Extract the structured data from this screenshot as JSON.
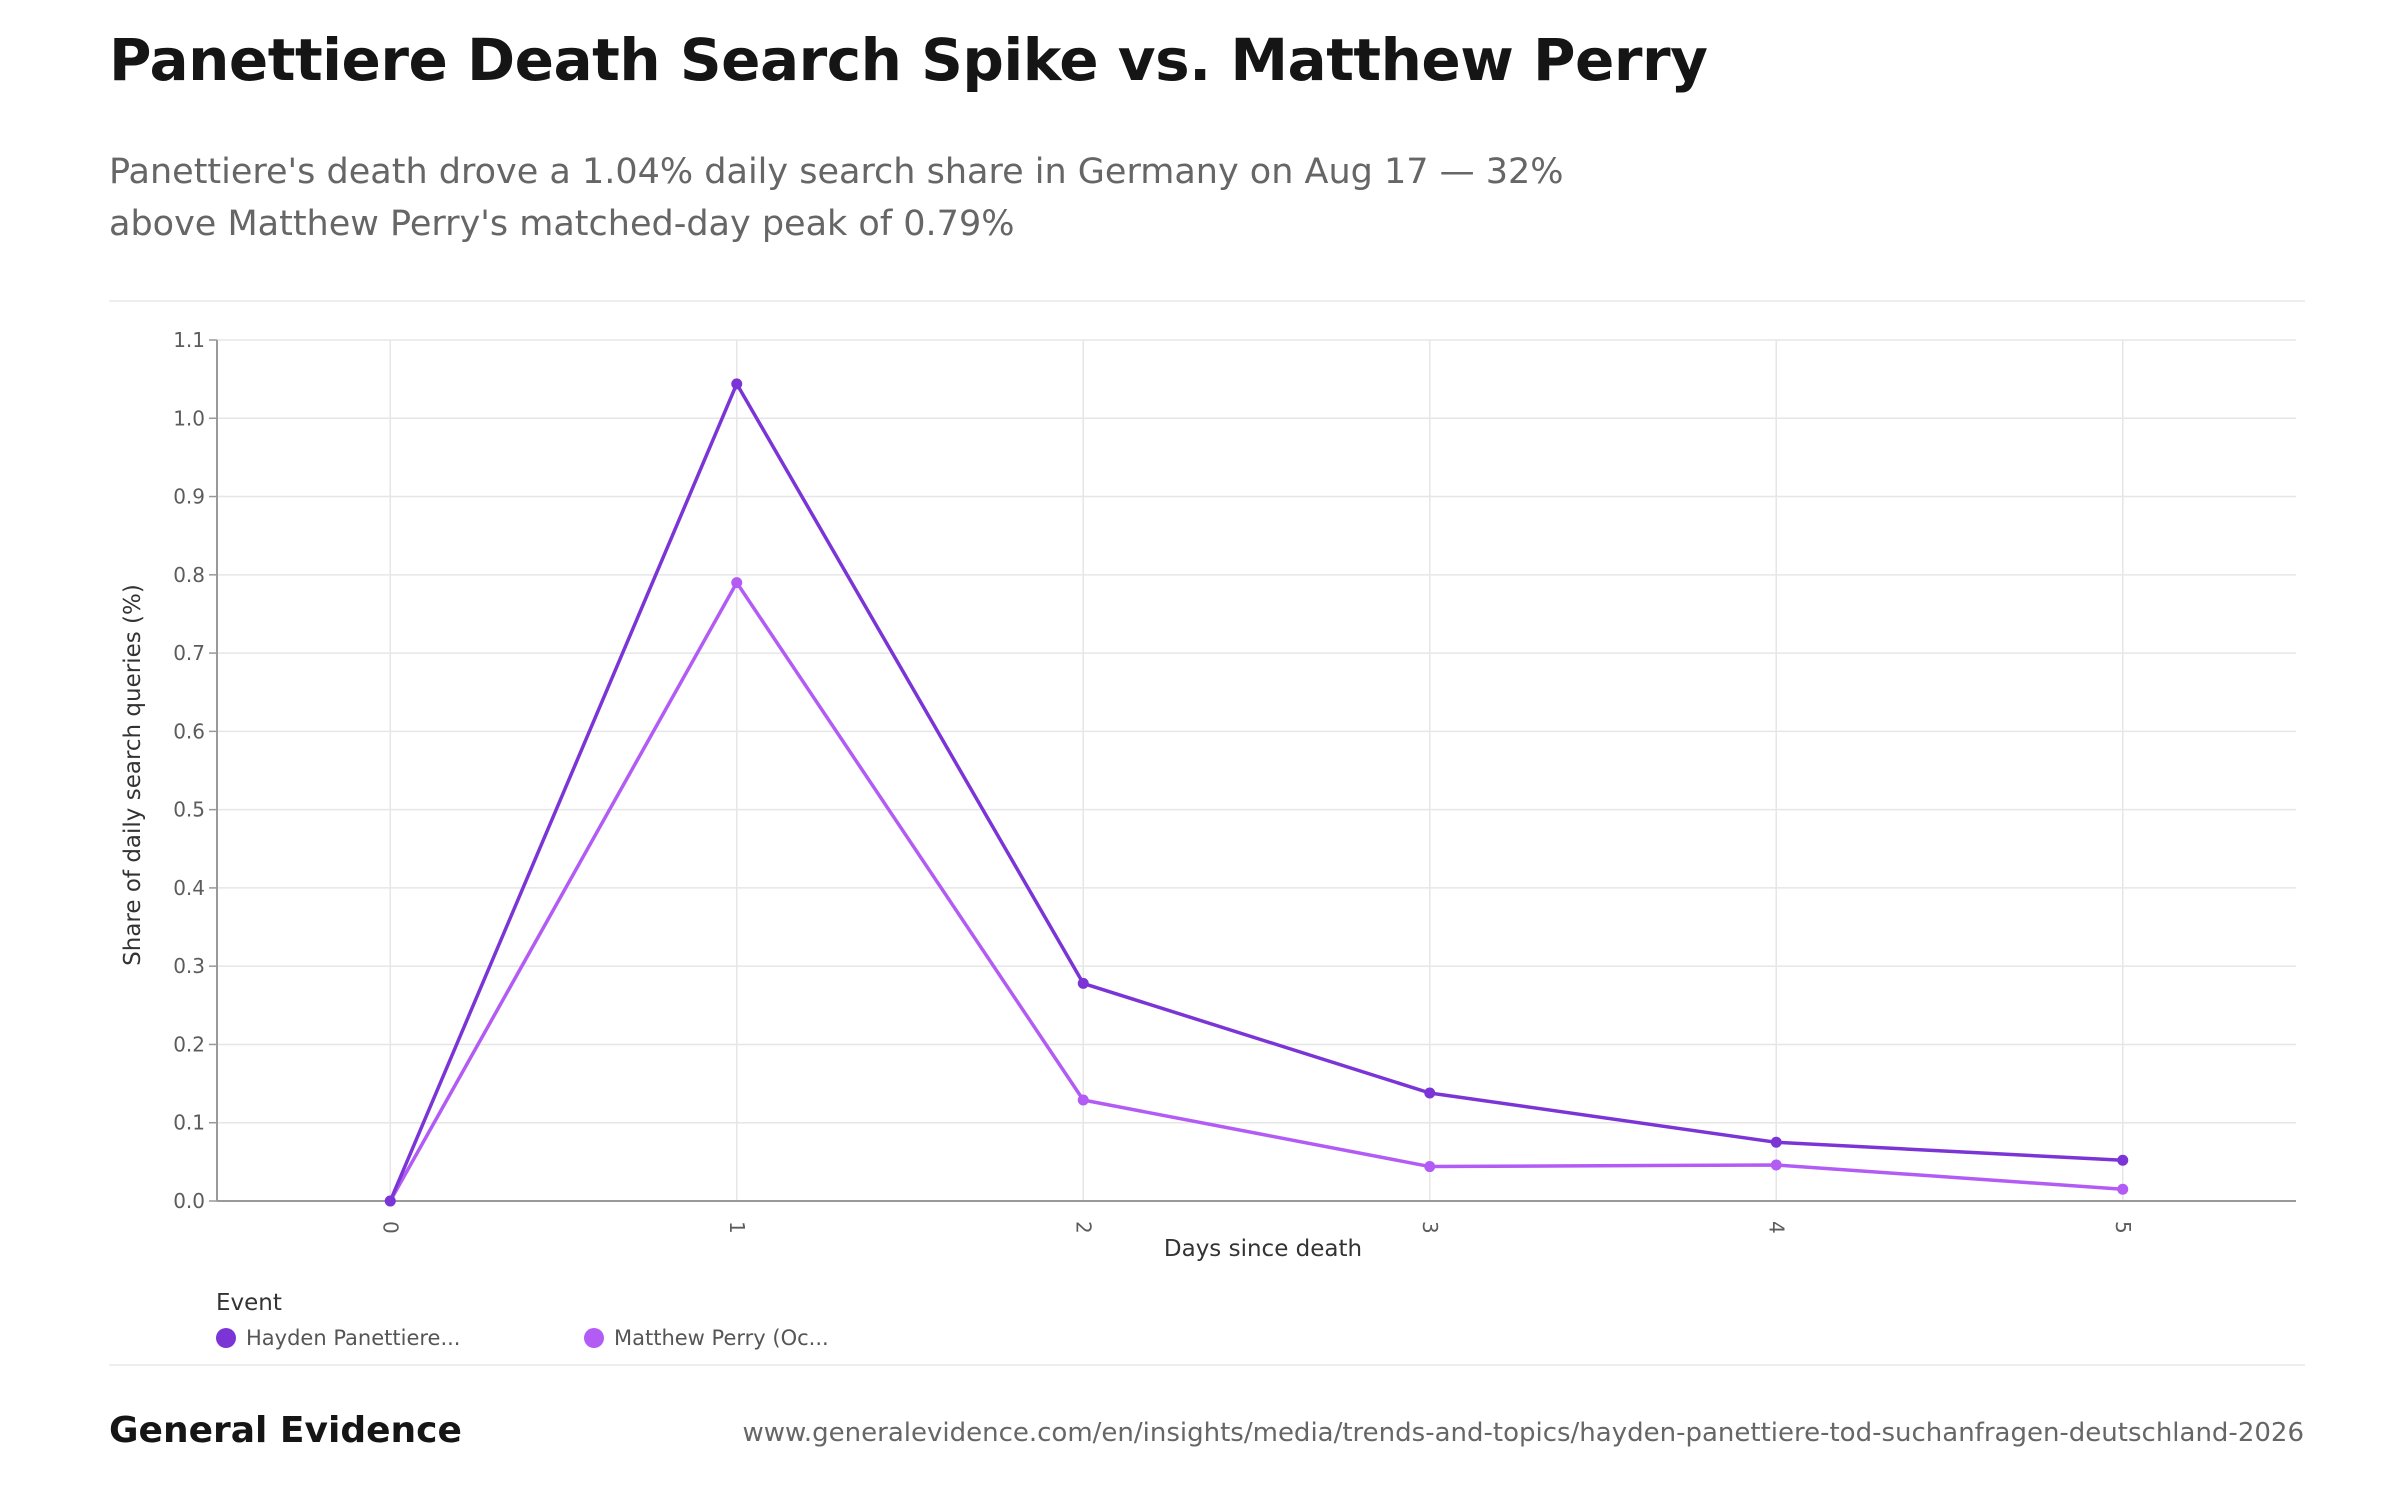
{
  "title": "Panettiere Death Search Spike vs. Matthew Perry",
  "subtitle": "Panettiere's death drove a 1.04% daily search share in Germany on Aug 17 — 32% above Matthew Perry's matched-day peak of 0.79%",
  "footer": {
    "brand": "General Evidence",
    "url": "www.generalevidence.com/en/insights/media/trends-and-topics/hayden-panettiere-tod-suchanfragen-deutschland-2026"
  },
  "legend": {
    "title": "Event",
    "items": [
      {
        "label": "Hayden Panettiere...",
        "color": "#7b35d6"
      },
      {
        "label": "Matthew Perry (Oc...",
        "color": "#b25cf5"
      }
    ]
  },
  "chart_data": {
    "type": "line",
    "title": "Panettiere Death Search Spike vs. Matthew Perry",
    "xlabel": "Days since death",
    "ylabel": "Share of daily search queries (%)",
    "x": [
      0,
      1,
      2,
      3,
      4,
      5
    ],
    "x_tick_labels": [
      "0",
      "1",
      "2",
      "3",
      "4",
      "5"
    ],
    "xlim": [
      -0.5,
      5.5
    ],
    "ylim": [
      0,
      1.1
    ],
    "y_ticks": [
      0.0,
      0.1,
      0.2,
      0.3,
      0.4,
      0.5,
      0.6,
      0.7,
      0.8,
      0.9,
      1.0,
      1.1
    ],
    "y_tick_labels": [
      "0.0",
      "0.1",
      "0.2",
      "0.3",
      "0.4",
      "0.5",
      "0.6",
      "0.7",
      "0.8",
      "0.9",
      "1.0",
      "1.1"
    ],
    "grid": true,
    "legend_position": "bottom-left",
    "series": [
      {
        "name": "Hayden Panettiere...",
        "color": "#7b35d6",
        "values": [
          0.0,
          1.044,
          0.278,
          0.138,
          0.075,
          0.052
        ]
      },
      {
        "name": "Matthew Perry (Oc...",
        "color": "#b25cf5",
        "values": [
          0.0,
          0.79,
          0.129,
          0.044,
          0.046,
          0.015
        ]
      }
    ]
  }
}
